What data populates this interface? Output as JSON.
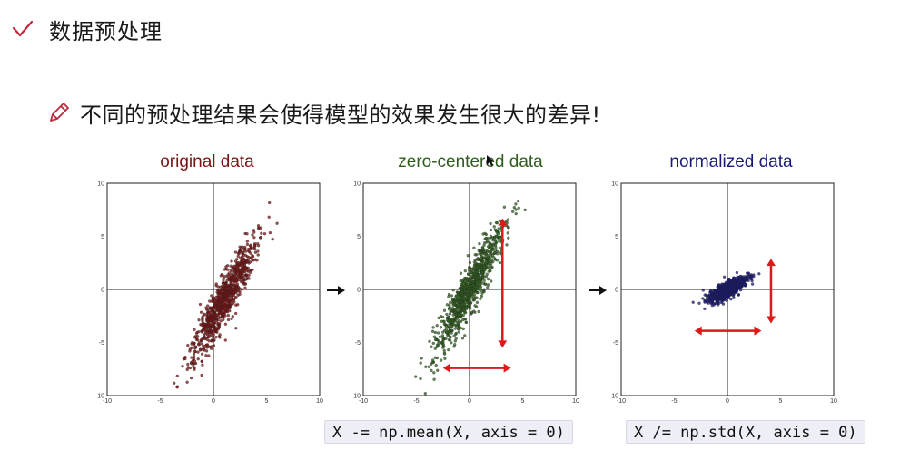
{
  "slide": {
    "heading": "数据预处理",
    "bullet": "不同的预处理结果会使得模型的效果发生很大的差异!"
  },
  "colors": {
    "accent": "#c0283c",
    "original": "#7a1414",
    "centered": "#2f5d1e",
    "normalized": "#1a1a78",
    "arrow_red": "#dd1a1a"
  },
  "icons": {
    "heading": "check-icon",
    "bullet": "pencil-icon",
    "between_plots": "arrow-right-icon"
  },
  "chart_data": [
    {
      "type": "scatter",
      "title": "original data",
      "xlim": [
        -10,
        10
      ],
      "ylim": [
        -10,
        10
      ],
      "xticks": [
        -10,
        -5,
        0,
        5,
        10
      ],
      "yticks": [
        -10,
        -5,
        0,
        5,
        10
      ],
      "grid": false,
      "mean": [
        1.0,
        -1.0
      ],
      "direction": [
        0.52,
        1.0
      ],
      "spread_along": 3.2,
      "spread_across": 0.55,
      "n_points": 900,
      "color": "#7a1414"
    },
    {
      "type": "scatter",
      "title": "zero-centered data",
      "xlim": [
        -10,
        10
      ],
      "ylim": [
        -10,
        10
      ],
      "xticks": [
        -10,
        -5,
        0,
        5,
        10
      ],
      "yticks": [
        -10,
        -5,
        0,
        5,
        10
      ],
      "grid": false,
      "mean": [
        0.0,
        0.0
      ],
      "direction": [
        0.52,
        1.0
      ],
      "spread_along": 3.2,
      "spread_across": 0.55,
      "n_points": 900,
      "color": "#2f5d1e"
    },
    {
      "type": "scatter",
      "title": "normalized data",
      "xlim": [
        -10,
        10
      ],
      "ylim": [
        -10,
        10
      ],
      "xticks": [
        -10,
        -5,
        0,
        5,
        10
      ],
      "yticks": [
        -10,
        -5,
        0,
        5,
        10
      ],
      "grid": false,
      "mean": [
        0.0,
        0.0
      ],
      "direction": [
        1.0,
        0.62
      ],
      "spread_along": 1.0,
      "spread_across": 0.32,
      "n_points": 900,
      "color": "#1a1a78"
    }
  ],
  "code": {
    "center": "X -= np.mean(X, axis = 0)",
    "normalize": "X /= np.std(X, axis = 0)"
  }
}
